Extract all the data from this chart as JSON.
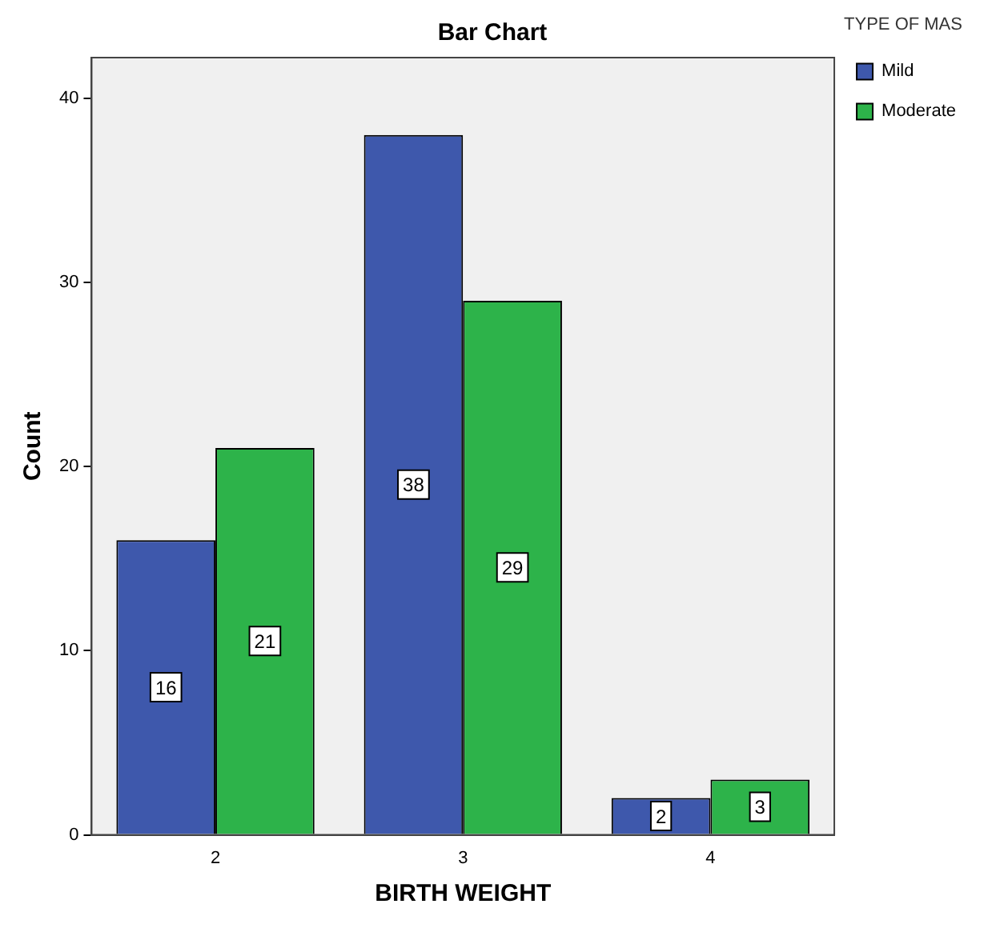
{
  "chart_data": {
    "type": "bar",
    "title": "Bar Chart",
    "xlabel": "BIRTH WEIGHT",
    "ylabel": "Count",
    "legend_title": "TYPE OF MAS",
    "categories": [
      "2",
      "3",
      "4"
    ],
    "series": [
      {
        "name": "Mild",
        "color": "#3e58ac",
        "values": [
          16,
          38,
          2
        ]
      },
      {
        "name": "Moderate",
        "color": "#2db34a",
        "values": [
          21,
          29,
          3
        ]
      }
    ],
    "ylim": [
      0,
      42.2
    ],
    "yticks": [
      0,
      10,
      20,
      30,
      40
    ],
    "grid": false,
    "legend": "top right",
    "data_labels": true
  }
}
